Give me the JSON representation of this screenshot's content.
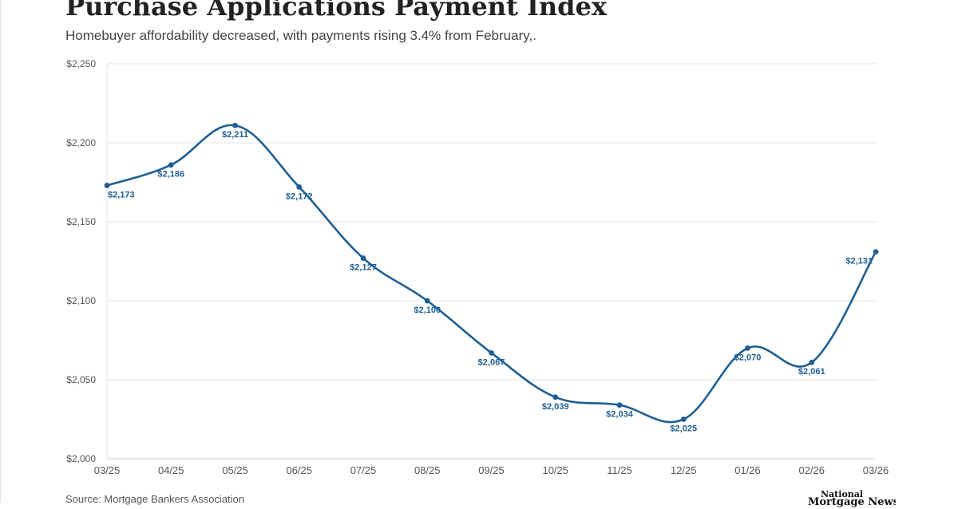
{
  "title": "Purchase Applications Payment Index",
  "subtitle": "Homebuyer affordability decreased, with payments rising 3.4% from February,.",
  "source": "Source: Mortgage Bankers Association",
  "logo": {
    "line1": "National",
    "line2": "Mortgage News"
  },
  "colors": {
    "line": "#1f5f93",
    "grid": "#e6e6e6",
    "axis": "#cccccc"
  },
  "chart_data": {
    "type": "line",
    "categories": [
      "03/25",
      "04/25",
      "05/25",
      "06/25",
      "07/25",
      "08/25",
      "09/25",
      "10/25",
      "11/25",
      "12/25",
      "01/26",
      "02/26",
      "03/26"
    ],
    "values": [
      2173,
      2186,
      2211,
      2172,
      2127,
      2100,
      2067,
      2039,
      2034,
      2025,
      2070,
      2061,
      2131
    ],
    "data_labels": [
      "$2,173",
      "$2,186",
      "$2,211",
      "$2,172",
      "$2,127",
      "$2,100",
      "$2,067",
      "$2,039",
      "$2,034",
      "$2,025",
      "$2,070",
      "$2,061",
      "$2,131"
    ],
    "y_ticks": [
      2000,
      2050,
      2100,
      2150,
      2200,
      2250
    ],
    "y_tick_labels": [
      "$2,000",
      "$2,050",
      "$2,100",
      "$2,150",
      "$2,200",
      "$2,250"
    ],
    "ylim": [
      2000,
      2250
    ],
    "grid": true,
    "legend": "none"
  }
}
